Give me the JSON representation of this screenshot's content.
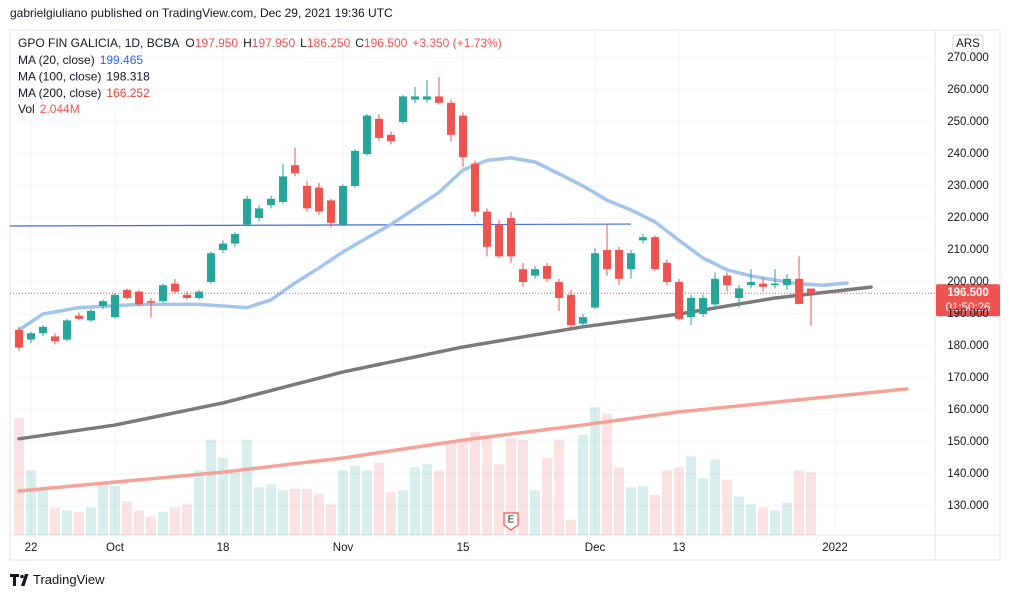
{
  "header": {
    "byline": "gabrielgiuliano published on TradingView.com, Dec 29, 2021 19:36 UTC"
  },
  "footer": {
    "brand": "TradingView"
  },
  "chart_data": {
    "type": "candlestick",
    "title": "GPO FIN GALICIA, 1D, BCBA",
    "ohlc_fields": [
      {
        "key": "O",
        "value": "197.950"
      },
      {
        "key": "H",
        "value": "197.950"
      },
      {
        "key": "L",
        "value": "186.250"
      },
      {
        "key": "C",
        "value": "196.500"
      }
    ],
    "change": "+3.350 (+1.73%)",
    "currency": "ARS",
    "last_price_label": "196.500",
    "countdown": "01:50:26",
    "earnings_marker": {
      "label": "E",
      "index": 41
    },
    "up_color": "#26a69a",
    "down_color": "#ef5350",
    "grid": true,
    "xlim": [
      -0.75,
      76.33
    ],
    "ylim": [
      120.94,
      278.75
    ],
    "yticks": [
      {
        "value": 130,
        "label": "130.000"
      },
      {
        "value": 140,
        "label": "140.000"
      },
      {
        "value": 150,
        "label": "150.000"
      },
      {
        "value": 160,
        "label": "160.000"
      },
      {
        "value": 170,
        "label": "170.000"
      },
      {
        "value": 180,
        "label": "180.000"
      },
      {
        "value": 190,
        "label": "190.000"
      },
      {
        "value": 200,
        "label": "200.000"
      },
      {
        "value": 210,
        "label": "210.000"
      },
      {
        "value": 220,
        "label": "220.000"
      },
      {
        "value": 230,
        "label": "230.000"
      },
      {
        "value": 240,
        "label": "240.000"
      },
      {
        "value": 250,
        "label": "250.000"
      },
      {
        "value": 260,
        "label": "260.000"
      },
      {
        "value": 270,
        "label": "270.000"
      }
    ],
    "time_labels": [
      {
        "index": 1,
        "label": "22"
      },
      {
        "index": 8,
        "label": "Oct"
      },
      {
        "index": 17,
        "label": "18"
      },
      {
        "index": 27,
        "label": "Nov"
      },
      {
        "index": 37,
        "label": "15"
      },
      {
        "index": 48,
        "label": "Dec"
      },
      {
        "index": 55,
        "label": "13"
      },
      {
        "index": 68,
        "label": "2022"
      }
    ],
    "open": [
      185,
      182,
      184,
      183,
      182,
      189.5,
      188,
      192.5,
      189,
      197.5,
      197,
      194,
      194,
      199.5,
      196,
      195,
      200,
      210,
      212,
      218,
      220,
      224,
      225,
      236.5,
      230,
      229.5,
      225.5,
      218,
      230,
      240,
      251,
      246,
      250,
      257,
      257,
      258,
      256,
      252,
      237,
      222,
      218,
      220,
      204,
      202,
      205,
      200,
      196,
      187,
      192,
      210,
      210,
      204,
      213,
      214,
      206,
      200,
      189,
      190,
      193,
      202,
      195,
      199,
      199.5,
      199,
      199,
      201,
      197.95
    ],
    "high": [
      186,
      184.5,
      186.5,
      184,
      188.5,
      190.5,
      191.5,
      194.5,
      196.5,
      198,
      197.5,
      195,
      199.5,
      201,
      197,
      197.5,
      209.5,
      213,
      215.5,
      227,
      224,
      227,
      237,
      242,
      231.5,
      231,
      226,
      230.5,
      241.5,
      252.5,
      252.5,
      247,
      258.5,
      261,
      263,
      264,
      257,
      253,
      238,
      223,
      219.5,
      222,
      206,
      205,
      206,
      201,
      197.5,
      190,
      210.5,
      218,
      211,
      210,
      215,
      214.5,
      207,
      201,
      196,
      196,
      203,
      203,
      199,
      204,
      201.5,
      204,
      202.5,
      208,
      197.95
    ],
    "low": [
      178.5,
      181,
      183,
      180.5,
      181.5,
      188,
      187.5,
      191.5,
      188.5,
      194.5,
      192.5,
      189,
      193.5,
      196.5,
      194.5,
      194.5,
      199.5,
      209,
      211,
      217.5,
      219,
      223,
      224.5,
      233,
      222,
      221,
      217,
      217.5,
      229.5,
      239.5,
      244,
      243,
      249.5,
      256,
      256,
      255.5,
      244,
      236,
      220.5,
      208,
      207.5,
      206,
      198.5,
      201,
      200,
      191,
      185.5,
      185.5,
      191.5,
      202,
      199,
      201,
      212,
      203.5,
      199,
      188,
      186.5,
      189,
      191.5,
      197,
      192,
      198,
      197,
      198,
      197.5,
      193,
      186.25
    ],
    "close": [
      179.5,
      184,
      186,
      181.5,
      188,
      188.5,
      191,
      194,
      196,
      195,
      193,
      193.5,
      199,
      197,
      195,
      197,
      209,
      212,
      215,
      226,
      223,
      226,
      233,
      234,
      223,
      222,
      218.5,
      230,
      241,
      252,
      245,
      244,
      258,
      258,
      258,
      256,
      246,
      239,
      222,
      211,
      208,
      208,
      200,
      204,
      201,
      195,
      186.5,
      189,
      209,
      204,
      201,
      209,
      214,
      204,
      200,
      188.5,
      195,
      195,
      201,
      199,
      198,
      200,
      198.5,
      199.5,
      201,
      193.15,
      196.5
    ],
    "volume_lim": [
      0,
      16.4
    ],
    "volume": [
      3.8,
      2.1,
      1.5,
      0.9,
      0.8,
      0.75,
      0.9,
      1.65,
      1.6,
      1.1,
      0.8,
      0.6,
      0.75,
      0.9,
      1.0,
      2.1,
      3.1,
      2.5,
      2.1,
      3.1,
      1.55,
      1.65,
      1.45,
      1.5,
      1.5,
      1.35,
      1.0,
      2.1,
      2.25,
      2.1,
      2.35,
      1.4,
      1.45,
      2.2,
      2.3,
      2.1,
      3.0,
      3.1,
      3.35,
      3.2,
      2.3,
      3.15,
      3.1,
      1.45,
      2.5,
      3.1,
      0.5,
      3.25,
      4.15,
      3.95,
      2.2,
      1.55,
      1.6,
      1.3,
      2.1,
      2.2,
      2.55,
      1.85,
      2.45,
      1.8,
      1.25,
      1.0,
      0.9,
      0.8,
      1.05,
      2.1,
      2.044
    ],
    "trend_line": {
      "color": "#3d6fd6",
      "x": [
        -1,
        51
      ],
      "values": [
        217.5,
        218.1
      ]
    },
    "series": [
      {
        "name": "MA (20, close)",
        "value": "199.465",
        "color": "#a3c4ec",
        "text_color": "#2962ff",
        "x": [
          0,
          2,
          5,
          10,
          15,
          19,
          21,
          23,
          25,
          27,
          29,
          31,
          33,
          35,
          37,
          39,
          41,
          43,
          45,
          47,
          49,
          51,
          53,
          55,
          57,
          59,
          61,
          63,
          65,
          67,
          69
        ],
        "values": [
          185,
          190,
          192,
          193,
          193,
          192,
          194.4,
          199.7,
          204.4,
          209.4,
          213.8,
          218,
          223,
          228,
          235,
          238,
          238.8,
          237.5,
          233.8,
          230,
          225.6,
          222.5,
          218.8,
          213,
          207.5,
          203.8,
          201.9,
          200.6,
          199.4,
          199,
          199.7
        ]
      },
      {
        "name": "MA (100, close)",
        "value": "198.318",
        "color": "#7a7a7a",
        "text_color": "#131722",
        "x": [
          0,
          8,
          17,
          27,
          37,
          47,
          55,
          63,
          71
        ],
        "values": [
          151,
          155.3,
          162.2,
          171.9,
          179.7,
          186,
          190,
          195,
          198.4
        ]
      },
      {
        "name": "MA (200, close)",
        "value": "166.252",
        "color": "#f5a398",
        "text_color": "#e0473a",
        "x": [
          0,
          17,
          27,
          37,
          47,
          55,
          64,
          74
        ],
        "values": [
          134.7,
          140.6,
          145,
          150.6,
          155.3,
          159.4,
          162.8,
          166.6
        ]
      }
    ],
    "volume_legend": {
      "name": "Vol",
      "value": "2.044M"
    }
  }
}
